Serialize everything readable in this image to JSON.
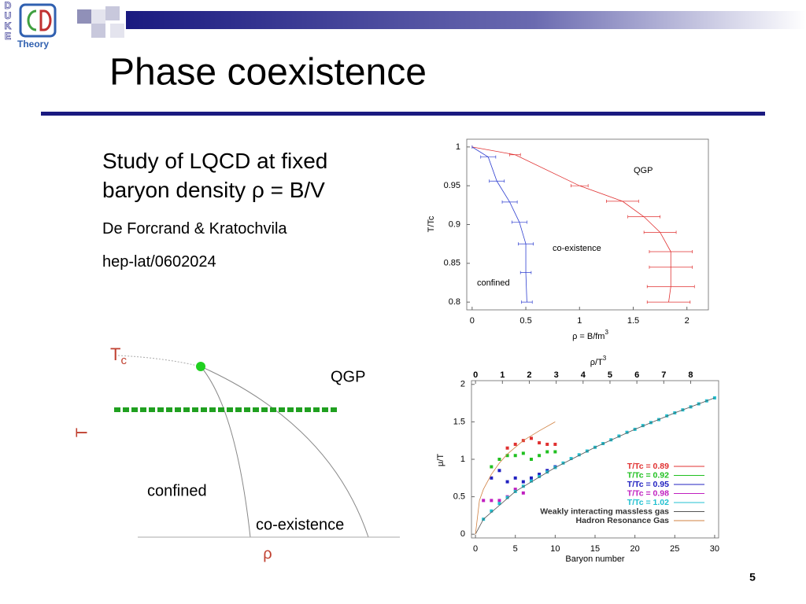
{
  "logo": {
    "letters": [
      "D",
      "U",
      "K",
      "E"
    ],
    "word": "Theory"
  },
  "title": "Phase coexistence",
  "bullets": [
    "Study of LQCD at fixed baryon density ρ = B/V",
    "De Forcrand & Kratochvila",
    "hep-lat/0602024"
  ],
  "sketch": {
    "tc": {
      "main": "T",
      "sub": "c"
    },
    "qgp": "QGP",
    "t_axis": "T",
    "confined": "confined",
    "coexistence": "co-existence",
    "rho_axis": "ρ"
  },
  "page_number": "5",
  "chart_data": [
    {
      "type": "line",
      "xlabel": "ρ = B/fm",
      "xlabel_sup": "3",
      "ylabel": "T/Tc",
      "xlim": [
        -0.05,
        2.2
      ],
      "ylim": [
        0.79,
        1.01
      ],
      "xticks": [
        0,
        0.5,
        1,
        1.5,
        2
      ],
      "yticks": [
        1,
        0.95,
        0.9,
        0.85,
        0.8
      ],
      "annotations": [
        "QGP",
        "co-existence",
        "confined"
      ],
      "series": [
        {
          "color": "#e03030",
          "style": "line",
          "x": [
            0,
            0.4,
            1.0,
            1.4,
            1.6,
            1.75,
            1.85,
            1.85,
            1.85,
            1.83
          ],
          "values": [
            1,
            0.99,
            0.95,
            0.93,
            0.91,
            0.89,
            0.865,
            0.845,
            0.82,
            0.8
          ],
          "xerr": [
            0,
            0.05,
            0.08,
            0.15,
            0.15,
            0.15,
            0.2,
            0.2,
            0.22,
            0.2
          ]
        },
        {
          "color": "#3040d0",
          "style": "line",
          "x": [
            0,
            0.15,
            0.23,
            0.35,
            0.44,
            0.5,
            0.5,
            0.51
          ],
          "values": [
            1,
            0.987,
            0.956,
            0.929,
            0.903,
            0.875,
            0.838,
            0.8
          ],
          "xerr": [
            0,
            0.07,
            0.07,
            0.07,
            0.07,
            0.07,
            0.05,
            0.05
          ]
        }
      ]
    },
    {
      "type": "scatter",
      "xlabel": "Baryon number",
      "ylabel": "μ/T",
      "x2label": "ρ/T",
      "x2label_sup": "3",
      "xlim": [
        -0.5,
        30.5
      ],
      "ylim": [
        -0.05,
        2.05
      ],
      "x2lim": [
        -0.15,
        9.04
      ],
      "xticks": [
        0,
        5,
        10,
        15,
        20,
        25,
        30
      ],
      "yticks": [
        0,
        0.5,
        1,
        1.5,
        2
      ],
      "x2ticks": [
        0,
        1,
        2,
        3,
        4,
        5,
        6,
        7,
        8
      ],
      "legend": "lower right",
      "series": [
        {
          "name": "T/Tc = 0.89",
          "color": "#e03030",
          "style": "points",
          "x": [
            4,
            5,
            6,
            7,
            8,
            9,
            10
          ],
          "values": [
            1.15,
            1.2,
            1.25,
            1.28,
            1.22,
            1.2,
            1.2
          ]
        },
        {
          "name": "T/Tc = 0.92",
          "color": "#20c020",
          "style": "points",
          "x": [
            2,
            3,
            4,
            5,
            6,
            7,
            8,
            9,
            10
          ],
          "values": [
            0.9,
            1.0,
            1.05,
            1.05,
            1.08,
            1.0,
            1.05,
            1.1,
            1.1
          ]
        },
        {
          "name": "T/Tc = 0.95",
          "color": "#2020c0",
          "style": "points",
          "x": [
            2,
            3,
            4,
            5,
            6,
            7,
            8,
            9,
            10
          ],
          "values": [
            0.75,
            0.85,
            0.7,
            0.75,
            0.7,
            0.75,
            0.8,
            0.85,
            0.9
          ]
        },
        {
          "name": "T/Tc = 0.98",
          "color": "#c020c0",
          "style": "points",
          "x": [
            1,
            2,
            3,
            4,
            5,
            6
          ],
          "values": [
            0.45,
            0.45,
            0.45,
            0.5,
            0.6,
            0.55
          ]
        },
        {
          "name": "T/Tc = 1.02",
          "color": "#20c0d0",
          "style": "points",
          "x": [
            1,
            2,
            3,
            4,
            5,
            6,
            7,
            8,
            9,
            10,
            11,
            12,
            13,
            14,
            15,
            16,
            17,
            18,
            19,
            20,
            21,
            22,
            23,
            24,
            25,
            26,
            27,
            28,
            29,
            30
          ],
          "values": [
            0.2,
            0.31,
            0.41,
            0.49,
            0.57,
            0.64,
            0.71,
            0.77,
            0.83,
            0.89,
            0.95,
            1.01,
            1.06,
            1.11,
            1.16,
            1.21,
            1.26,
            1.31,
            1.36,
            1.4,
            1.45,
            1.49,
            1.53,
            1.58,
            1.62,
            1.66,
            1.7,
            1.74,
            1.78,
            1.82
          ]
        },
        {
          "name": "Weakly interacting massless gas",
          "color": "#555555",
          "style": "line",
          "x": [
            0,
            1,
            5,
            10,
            15,
            20,
            25,
            30
          ],
          "values": [
            0,
            0.2,
            0.57,
            0.89,
            1.16,
            1.4,
            1.62,
            1.82
          ]
        },
        {
          "name": "Hadron Resonance Gas",
          "color": "#d08040",
          "style": "line",
          "x": [
            0,
            0.5,
            1,
            2,
            3,
            4,
            6,
            8,
            10
          ],
          "values": [
            0,
            0.45,
            0.6,
            0.8,
            0.95,
            1.07,
            1.25,
            1.38,
            1.5
          ]
        }
      ]
    }
  ]
}
